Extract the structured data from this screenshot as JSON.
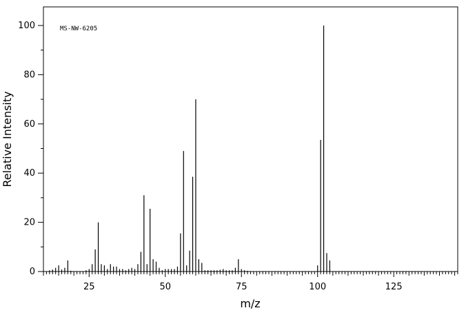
{
  "chart_data": {
    "type": "bar",
    "title": "",
    "annotation": "MS-NW-6205",
    "xlabel": "m/z",
    "ylabel": "Relative Intensity",
    "xlim": [
      10,
      146
    ],
    "ylim": [
      0,
      100
    ],
    "x_ticks": [
      25,
      50,
      75,
      100,
      125
    ],
    "y_ticks": [
      0,
      20,
      40,
      60,
      80,
      100
    ],
    "grid": false,
    "legend": "none",
    "color": "#000000",
    "x": [
      12,
      13,
      14,
      15,
      16,
      17,
      18,
      19,
      24,
      25,
      26,
      27,
      28,
      29,
      30,
      31,
      32,
      33,
      34,
      35,
      36,
      37,
      38,
      39,
      40,
      41,
      42,
      43,
      44,
      45,
      46,
      47,
      48,
      49,
      50,
      51,
      52,
      53,
      54,
      55,
      56,
      57,
      58,
      59,
      60,
      61,
      62,
      63,
      64,
      65,
      66,
      67,
      68,
      69,
      70,
      71,
      72,
      73,
      74,
      75,
      76,
      77,
      100,
      101,
      102,
      103,
      104
    ],
    "values": [
      0.5,
      0.8,
      1.5,
      2.5,
      0.8,
      1.5,
      4.5,
      0.3,
      0.5,
      1.0,
      3.0,
      9.0,
      20.0,
      3.0,
      2.5,
      1.0,
      3.0,
      2.0,
      2.0,
      1.0,
      1.0,
      0.5,
      1.0,
      1.5,
      1.0,
      3.0,
      8.0,
      31.0,
      3.0,
      25.5,
      5.0,
      4.0,
      1.5,
      0.5,
      1.0,
      1.0,
      1.0,
      1.0,
      2.0,
      15.5,
      49.0,
      2.5,
      8.5,
      38.5,
      70.0,
      5.0,
      3.5,
      0.5,
      0.5,
      0.5,
      0.5,
      0.5,
      0.7,
      1.0,
      0.5,
      0.5,
      0.5,
      1.5,
      5.0,
      1.0,
      0.5,
      0.3,
      2.5,
      53.5,
      100.0,
      7.5,
      4.5
    ]
  }
}
